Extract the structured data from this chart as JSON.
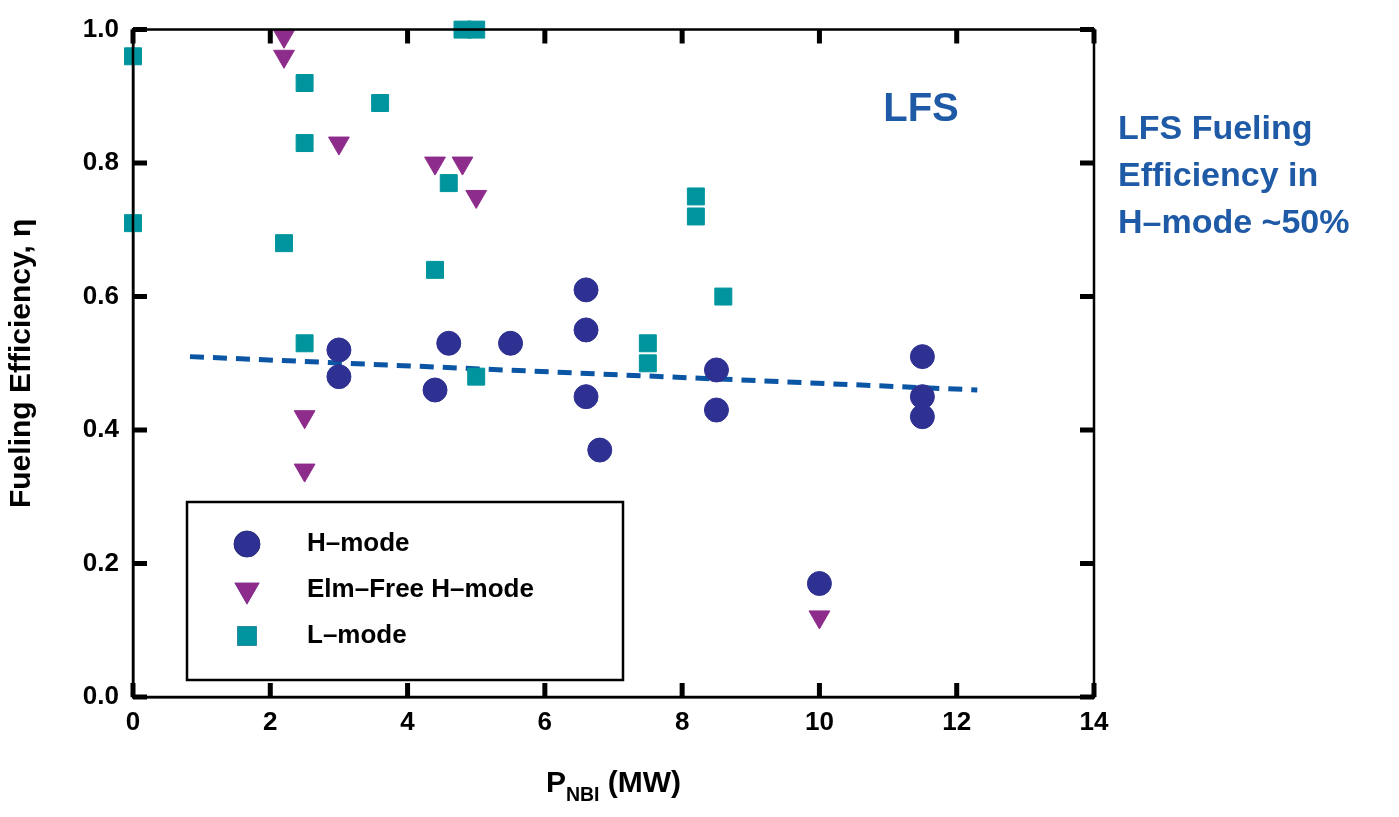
{
  "chart_data": {
    "type": "scatter",
    "xlabel": "P$_{NBI}$ (MW)",
    "ylabel": "Fueling Efficiency, η",
    "annotations": [
      "LFS",
      "LFS Fueling Efficiency in H–mode ~50%"
    ],
    "xlim": [
      0,
      14
    ],
    "xticks": [
      0,
      2,
      4,
      6,
      8,
      10,
      12,
      14
    ],
    "ylim": [
      0,
      1
    ],
    "yticks": [
      {
        "value": 0,
        "label": "0.0"
      },
      {
        "value": 0.2,
        "label": "0.2"
      },
      {
        "value": 0.4,
        "label": "0.4"
      },
      {
        "value": 0.6,
        "label": "0.6"
      },
      {
        "value": 0.8,
        "label": "0.8"
      },
      {
        "value": 1,
        "label": "1.0"
      }
    ],
    "grid": false,
    "legend": "bottom left",
    "series": [
      {
        "name": "H–mode",
        "color": "#2e3192",
        "marker": "circle",
        "x": [
          3.0,
          3.0,
          4.6,
          4.4,
          5.5,
          6.6,
          6.6,
          6.6,
          6.8,
          8.5,
          8.5,
          11.5,
          11.5,
          11.5,
          10
        ],
        "values": [
          0.52,
          0.48,
          0.53,
          0.46,
          0.53,
          0.61,
          0.55,
          0.45,
          0.37,
          0.49,
          0.43,
          0.51,
          0.45,
          0.42,
          0.17
        ]
      },
      {
        "name": "Elm–Free H–mode",
        "color": "#8e2c8c",
        "marker": "triangle",
        "x": [
          2.2,
          2.2,
          3.0,
          4.4,
          4.8,
          5.0,
          2.5,
          2.5,
          10
        ],
        "values": [
          0.99,
          0.96,
          0.83,
          0.8,
          0.8,
          0.75,
          0.42,
          0.34,
          0.12
        ]
      },
      {
        "name": "L–mode",
        "color": "#00959e",
        "marker": "square",
        "x": [
          0,
          0,
          2.5,
          3.6,
          2.5,
          2.2,
          4.6,
          4.4,
          2.5,
          5.0,
          4.8,
          5.0,
          8.6,
          7.5,
          7.5,
          8.2,
          8.2
        ],
        "values": [
          0.96,
          0.71,
          0.92,
          0.89,
          0.83,
          0.68,
          0.77,
          0.64,
          0.53,
          0.48,
          1.0,
          1.0,
          0.6,
          0.53,
          0.5,
          0.75,
          0.72
        ]
      },
      {
        "type": "line",
        "color": "#0b55a5",
        "marker": "none",
        "line_style": "dashed",
        "x": [
          0.83,
          12.3
        ],
        "values": [
          0.51,
          0.46
        ]
      }
    ]
  }
}
